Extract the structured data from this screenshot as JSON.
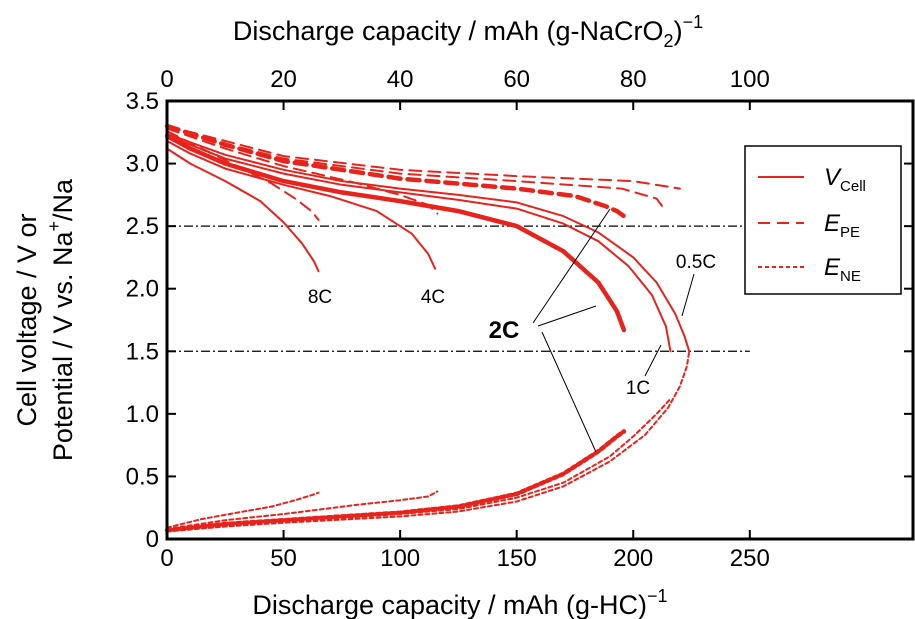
{
  "chart_data": {
    "type": "line",
    "top_xlabel_main": "Discharge capacity / mAh (g-NaCrO",
    "top_xlabel_sub": "2",
    "top_xlabel_end": ")",
    "top_xlabel_sup": "−1",
    "xlabel_main": "Discharge capacity / mAh (g-HC)",
    "xlabel_sup": "−1",
    "ylabel_line1": "Cell voltage / V or",
    "ylabel_line2_main": "Potential / V vs. Na",
    "ylabel_line2_sup": "+",
    "ylabel_line2_end": "/Na",
    "xlim": [
      0,
      320
    ],
    "ylim": [
      0,
      3.5
    ],
    "top_xlim": [
      0,
      128
    ],
    "x_ticks": [
      "0",
      "50",
      "100",
      "150",
      "200",
      "250"
    ],
    "top_x_ticks": [
      "0",
      "20",
      "40",
      "60",
      "80",
      "100"
    ],
    "y_ticks": [
      "0",
      "0.5",
      "1.0",
      "1.5",
      "2.0",
      "2.5",
      "3.0",
      "3.5"
    ],
    "reference_lines": [
      2.5,
      1.5
    ],
    "legend_position": "top-right",
    "legend": [
      {
        "main": "V",
        "sub": "Cell",
        "style": "solid"
      },
      {
        "main": "E",
        "sub": "PE",
        "style": "dashed"
      },
      {
        "main": "E",
        "sub": "NE",
        "style": "dotted"
      }
    ],
    "labels": {
      "c8": "8C",
      "c4": "4C",
      "c2": "2C",
      "c1": "1C",
      "c05": "0.5C"
    },
    "color": "#e8231c",
    "series": [
      {
        "rate": "0.5C",
        "kind": "V_Cell",
        "x": [
          0,
          10,
          25,
          50,
          75,
          100,
          125,
          150,
          170,
          185,
          200,
          210,
          218,
          222,
          224
        ],
        "y": [
          3.24,
          3.17,
          3.07,
          2.95,
          2.86,
          2.8,
          2.75,
          2.69,
          2.58,
          2.45,
          2.25,
          2.05,
          1.8,
          1.62,
          1.5
        ]
      },
      {
        "rate": "1C",
        "kind": "V_Cell",
        "x": [
          0,
          10,
          25,
          50,
          75,
          100,
          125,
          150,
          170,
          185,
          198,
          208,
          214,
          216
        ],
        "y": [
          3.23,
          3.15,
          3.04,
          2.92,
          2.83,
          2.77,
          2.71,
          2.64,
          2.52,
          2.38,
          2.18,
          1.95,
          1.7,
          1.5
        ]
      },
      {
        "rate": "2C",
        "kind": "V_Cell",
        "x": [
          0,
          10,
          25,
          50,
          75,
          100,
          125,
          150,
          170,
          185,
          193,
          196
        ],
        "y": [
          3.22,
          3.12,
          3.0,
          2.86,
          2.77,
          2.7,
          2.62,
          2.5,
          2.3,
          2.05,
          1.82,
          1.67
        ]
      },
      {
        "rate": "4C",
        "kind": "V_Cell",
        "x": [
          0,
          10,
          25,
          50,
          70,
          90,
          105,
          112,
          115
        ],
        "y": [
          3.18,
          3.08,
          2.96,
          2.83,
          2.74,
          2.62,
          2.44,
          2.28,
          2.16
        ]
      },
      {
        "rate": "8C",
        "kind": "V_Cell",
        "x": [
          0,
          10,
          25,
          40,
          50,
          58,
          63,
          65
        ],
        "y": [
          3.12,
          3.0,
          2.86,
          2.7,
          2.53,
          2.36,
          2.22,
          2.14
        ]
      },
      {
        "rate": "0.5C",
        "kind": "E_PE",
        "x": [
          0,
          25,
          50,
          100,
          150,
          200,
          220
        ],
        "y": [
          3.3,
          3.18,
          3.06,
          2.95,
          2.9,
          2.86,
          2.8
        ]
      },
      {
        "rate": "1C",
        "kind": "E_PE",
        "x": [
          0,
          25,
          50,
          100,
          150,
          195,
          210,
          214
        ],
        "y": [
          3.3,
          3.16,
          3.04,
          2.92,
          2.86,
          2.8,
          2.72,
          2.62
        ]
      },
      {
        "rate": "2C",
        "kind": "E_PE",
        "x": [
          0,
          25,
          50,
          100,
          150,
          175,
          188,
          193,
          196
        ],
        "y": [
          3.3,
          3.15,
          3.02,
          2.88,
          2.8,
          2.74,
          2.66,
          2.62,
          2.58
        ]
      },
      {
        "rate": "4C",
        "kind": "E_PE",
        "x": [
          0,
          25,
          50,
          80,
          100,
          112,
          116
        ],
        "y": [
          3.28,
          3.12,
          2.98,
          2.85,
          2.75,
          2.67,
          2.6
        ]
      },
      {
        "rate": "8C",
        "kind": "E_PE",
        "x": [
          0,
          15,
          30,
          45,
          55,
          62,
          65
        ],
        "y": [
          3.26,
          3.12,
          2.98,
          2.84,
          2.72,
          2.62,
          2.55
        ]
      },
      {
        "rate": "0.5C",
        "kind": "E_NE",
        "x": [
          0,
          25,
          50,
          100,
          125,
          150,
          170,
          190,
          205,
          215,
          220,
          223,
          224
        ],
        "y": [
          0.06,
          0.1,
          0.13,
          0.18,
          0.22,
          0.3,
          0.42,
          0.62,
          0.83,
          1.05,
          1.22,
          1.38,
          1.5
        ]
      },
      {
        "rate": "1C",
        "kind": "E_NE",
        "x": [
          0,
          25,
          50,
          100,
          125,
          150,
          170,
          190,
          200,
          210,
          214,
          216
        ],
        "y": [
          0.06,
          0.11,
          0.14,
          0.2,
          0.24,
          0.33,
          0.45,
          0.66,
          0.82,
          1.0,
          1.08,
          1.12
        ]
      },
      {
        "rate": "2C",
        "kind": "E_NE",
        "x": [
          0,
          25,
          50,
          100,
          125,
          150,
          170,
          185,
          193,
          196
        ],
        "y": [
          0.07,
          0.12,
          0.15,
          0.21,
          0.26,
          0.36,
          0.52,
          0.7,
          0.82,
          0.86
        ]
      },
      {
        "rate": "4C",
        "kind": "E_NE",
        "x": [
          0,
          25,
          50,
          80,
          100,
          112,
          116
        ],
        "y": [
          0.08,
          0.15,
          0.2,
          0.27,
          0.31,
          0.34,
          0.38
        ]
      },
      {
        "rate": "8C",
        "kind": "E_NE",
        "x": [
          0,
          15,
          30,
          45,
          55,
          62,
          65
        ],
        "y": [
          0.09,
          0.16,
          0.21,
          0.26,
          0.31,
          0.35,
          0.37
        ]
      }
    ]
  }
}
